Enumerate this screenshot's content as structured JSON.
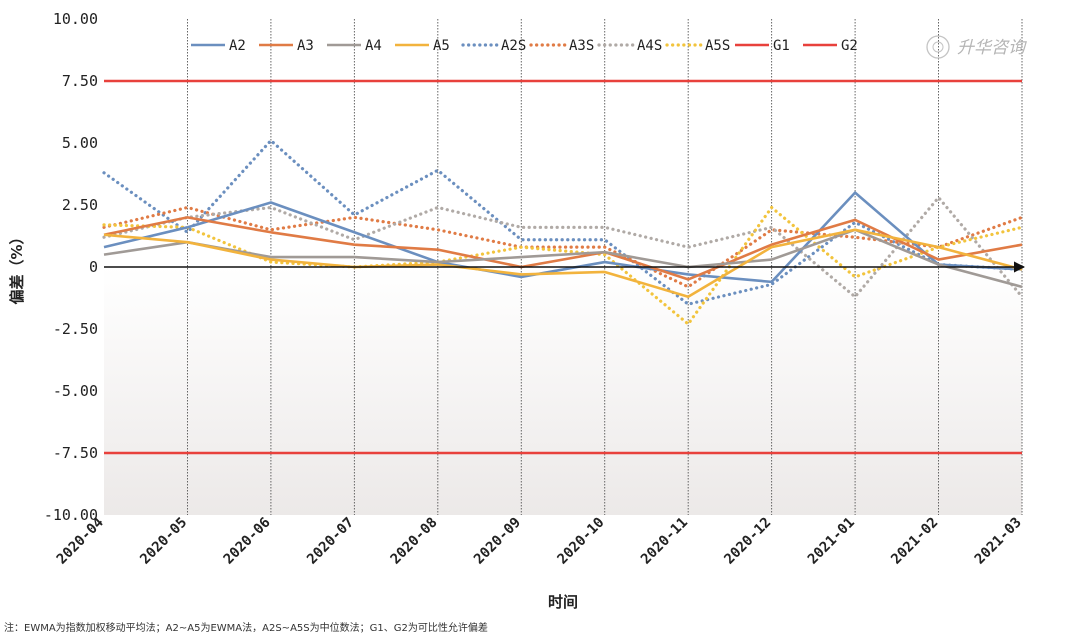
{
  "chart_data": {
    "type": "line",
    "title": "",
    "xlabel": "时间",
    "ylabel": "偏差（%）",
    "ylim": [
      -10,
      10
    ],
    "yticks": [
      10,
      7.5,
      5,
      2.5,
      0,
      -2.5,
      -5,
      -7.5,
      -10
    ],
    "ytick_labels": [
      "10.00",
      "7.50",
      "5.00",
      "2.50",
      "0",
      "-2.50",
      "-5.00",
      "-7.50",
      "-10.00"
    ],
    "categories": [
      "2020-04",
      "2020-05",
      "2020-06",
      "2020-07",
      "2020-08",
      "2020-09",
      "2020-10",
      "2020-11",
      "2020-12",
      "2021-01",
      "2021-02",
      "2021-03"
    ],
    "legend_position": "top",
    "series": [
      {
        "name": "A2",
        "style": "solid",
        "color": "#6b8fbf",
        "values": [
          0.8,
          1.6,
          2.6,
          1.4,
          0.2,
          -0.4,
          0.2,
          -0.3,
          -0.6,
          3.0,
          0.1,
          -0.1
        ]
      },
      {
        "name": "A3",
        "style": "solid",
        "color": "#e07b45",
        "values": [
          1.3,
          2.0,
          1.4,
          0.9,
          0.7,
          0.0,
          0.6,
          -0.5,
          0.9,
          1.9,
          0.3,
          0.9
        ]
      },
      {
        "name": "A4",
        "style": "solid",
        "color": "#a09a96",
        "values": [
          0.5,
          1.0,
          0.4,
          0.4,
          0.2,
          0.4,
          0.6,
          0.0,
          0.3,
          1.5,
          0.1,
          -0.8
        ]
      },
      {
        "name": "A5",
        "style": "solid",
        "color": "#f2b33d",
        "values": [
          1.3,
          1.0,
          0.3,
          0.0,
          0.1,
          -0.3,
          -0.2,
          -1.2,
          0.8,
          1.5,
          0.8,
          -0.1
        ]
      },
      {
        "name": "A2S",
        "style": "dotted",
        "color": "#6b8fbf",
        "values": [
          3.8,
          1.4,
          5.1,
          2.1,
          3.9,
          1.1,
          1.1,
          -1.5,
          -0.7,
          1.8,
          0.1,
          -0.1
        ]
      },
      {
        "name": "A3S",
        "style": "dotted",
        "color": "#e07b45",
        "values": [
          1.6,
          2.4,
          1.5,
          2.0,
          1.5,
          0.8,
          0.8,
          -0.8,
          1.5,
          1.2,
          0.8,
          2.0
        ]
      },
      {
        "name": "A4S",
        "style": "dotted",
        "color": "#b0aaa6",
        "values": [
          1.2,
          2.0,
          2.4,
          1.1,
          2.4,
          1.6,
          1.6,
          0.8,
          1.6,
          -1.2,
          2.8,
          -1.2
        ]
      },
      {
        "name": "A5S",
        "style": "dotted",
        "color": "#f2c43d",
        "values": [
          1.7,
          1.6,
          0.2,
          0.0,
          0.2,
          0.8,
          0.5,
          -2.3,
          2.4,
          -0.4,
          0.8,
          1.6
        ]
      },
      {
        "name": "G1",
        "style": "solid",
        "color": "#e8413c",
        "values": [
          7.5,
          7.5,
          7.5,
          7.5,
          7.5,
          7.5,
          7.5,
          7.5,
          7.5,
          7.5,
          7.5,
          7.5
        ]
      },
      {
        "name": "G2",
        "style": "solid",
        "color": "#e8413c",
        "values": [
          -7.5,
          -7.5,
          -7.5,
          -7.5,
          -7.5,
          -7.5,
          -7.5,
          -7.5,
          -7.5,
          -7.5,
          -7.5,
          -7.5
        ]
      }
    ]
  },
  "watermark": {
    "text": "升华咨询"
  },
  "note": "注：EWMA为指数加权移动平均法；A2~A5为EWMA法，A2S~A5S为中位数法；G1、G2为可比性允许偏差"
}
